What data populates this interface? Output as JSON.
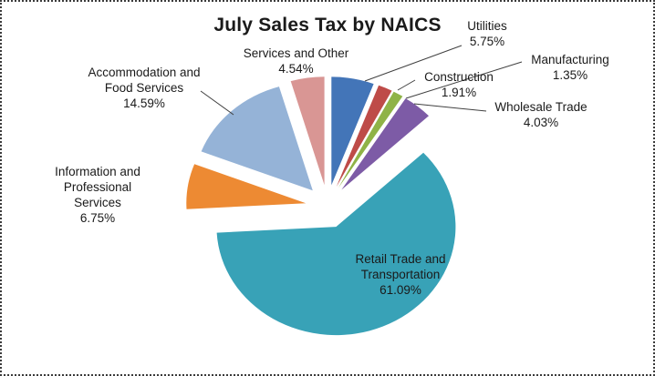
{
  "chart_data": {
    "type": "pie",
    "title": "July Sales Tax by NAICS",
    "exploded": true,
    "legend_position": "none",
    "labels_position": "outside-with-leader-lines",
    "unit": "%",
    "slices": [
      {
        "label": "Utilities",
        "value": 5.75,
        "pct": "5.75%",
        "color": "#4375B8"
      },
      {
        "label": "Construction",
        "value": 1.91,
        "pct": "1.91%",
        "color": "#BE4B48"
      },
      {
        "label": "Manufacturing",
        "value": 1.35,
        "pct": "1.35%",
        "color": "#8FB347"
      },
      {
        "label": "Wholesale Trade",
        "value": 4.03,
        "pct": "4.03%",
        "color": "#7D5BA6"
      },
      {
        "label": "Retail Trade and Transportation",
        "value": 61.09,
        "pct": "61.09%",
        "color": "#38A2B7"
      },
      {
        "label": "Information and Professional Services",
        "value": 6.75,
        "pct": "6.75%",
        "color": "#ED8A33"
      },
      {
        "label": "Accommodation and Food Services",
        "value": 14.59,
        "pct": "14.59%",
        "color": "#95B3D7"
      },
      {
        "label": "Services and Other",
        "value": 4.54,
        "pct": "4.54%",
        "color": "#D99694"
      }
    ],
    "leader_line_color": "#404040",
    "text_color": "#1a1a1a"
  }
}
